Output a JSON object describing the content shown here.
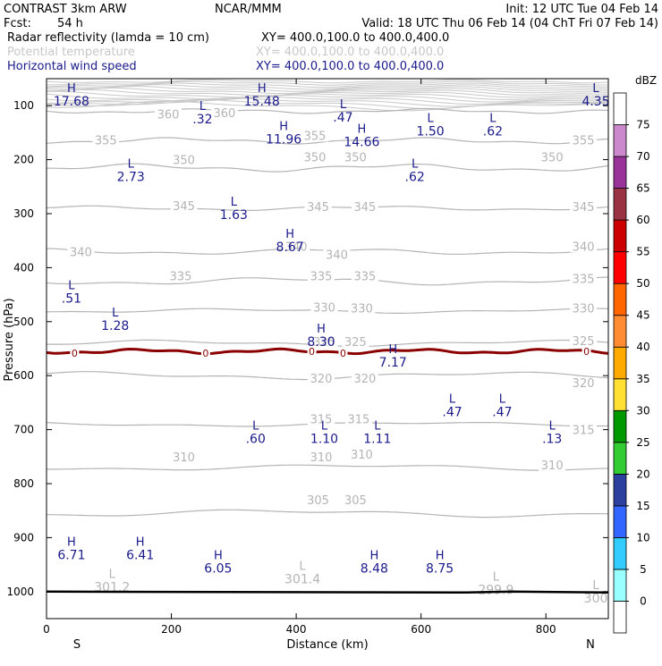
{
  "header": {
    "model": "CONTRAST  3km ARW",
    "org": "NCAR/MMM",
    "init": "Init: 12 UTC Tue 04 Feb 14",
    "fcst_label": "Fcst:",
    "fcst_value": "54 h",
    "valid": "Valid: 18 UTC Thu 06 Feb 14 (04 ChT Fri 07 Feb 14)",
    "fields": [
      {
        "name": "Radar reflectivity (lamda = 10 cm)",
        "xy": "XY= 400.0,100.0 to 400.0,400.0",
        "color": "#000000"
      },
      {
        "name": "Potential temperature",
        "xy": "XY= 400.0,100.0 to 400.0,400.0",
        "color": "#c8c8c8"
      },
      {
        "name": "Horizontal wind speed",
        "xy": "XY= 400.0,100.0 to 400.0,400.0",
        "color": "#1a1a8c"
      }
    ]
  },
  "chart_data": {
    "type": "cross-section contour",
    "xlabel": "Distance (km)",
    "ylabel": "Pressure (hPa)",
    "xlim": [
      0,
      900
    ],
    "ylim": [
      1050,
      50
    ],
    "x_ticks": [
      "0",
      "200",
      "400",
      "600",
      "800"
    ],
    "x_tick_values": [
      0,
      200,
      400,
      600,
      800
    ],
    "y_ticks": [
      "100",
      "200",
      "300",
      "400",
      "500",
      "600",
      "700",
      "800",
      "900",
      "1000"
    ],
    "y_tick_values": [
      100,
      200,
      300,
      400,
      500,
      600,
      700,
      800,
      900,
      1000
    ],
    "start_label": "S",
    "end_label": "N",
    "theta_contours": [
      {
        "value": 360,
        "p": 110
      },
      {
        "value": 355,
        "p": 165
      },
      {
        "value": 350,
        "p": 215
      },
      {
        "value": 345,
        "p": 290
      },
      {
        "value": 340,
        "p": 370
      },
      {
        "value": 335,
        "p": 425
      },
      {
        "value": 330,
        "p": 480
      },
      {
        "value": 325,
        "p": 540
      },
      {
        "value": 320,
        "p": 600
      },
      {
        "value": 315,
        "p": 690
      },
      {
        "value": 310,
        "p": 770
      },
      {
        "value": 305,
        "p": 855
      }
    ],
    "theta_labels": [
      {
        "text": "360",
        "x": 195,
        "p": 120
      },
      {
        "text": "360",
        "x": 285,
        "p": 118
      },
      {
        "text": "355",
        "x": 95,
        "p": 168
      },
      {
        "text": "355",
        "x": 430,
        "p": 160
      },
      {
        "text": "355",
        "x": 860,
        "p": 168
      },
      {
        "text": "350",
        "x": 220,
        "p": 205
      },
      {
        "text": "350",
        "x": 430,
        "p": 200
      },
      {
        "text": "350",
        "x": 495,
        "p": 200
      },
      {
        "text": "350",
        "x": 810,
        "p": 200
      },
      {
        "text": "345",
        "x": 220,
        "p": 290
      },
      {
        "text": "345",
        "x": 435,
        "p": 292
      },
      {
        "text": "345",
        "x": 510,
        "p": 292
      },
      {
        "text": "345",
        "x": 860,
        "p": 292
      },
      {
        "text": "340",
        "x": 55,
        "p": 375
      },
      {
        "text": "340",
        "x": 400,
        "p": 365
      },
      {
        "text": "340",
        "x": 465,
        "p": 380
      },
      {
        "text": "340",
        "x": 860,
        "p": 365
      },
      {
        "text": "335",
        "x": 215,
        "p": 420
      },
      {
        "text": "335",
        "x": 440,
        "p": 420
      },
      {
        "text": "335",
        "x": 510,
        "p": 420
      },
      {
        "text": "335",
        "x": 860,
        "p": 425
      },
      {
        "text": "330",
        "x": 445,
        "p": 478
      },
      {
        "text": "330",
        "x": 505,
        "p": 480
      },
      {
        "text": "330",
        "x": 860,
        "p": 480
      },
      {
        "text": "325",
        "x": 445,
        "p": 542
      },
      {
        "text": "325",
        "x": 495,
        "p": 542
      },
      {
        "text": "325",
        "x": 860,
        "p": 540
      },
      {
        "text": "320",
        "x": 440,
        "p": 610
      },
      {
        "text": "320",
        "x": 510,
        "p": 610
      },
      {
        "text": "320",
        "x": 860,
        "p": 618
      },
      {
        "text": "315",
        "x": 440,
        "p": 685
      },
      {
        "text": "315",
        "x": 500,
        "p": 685
      },
      {
        "text": "315",
        "x": 860,
        "p": 705
      },
      {
        "text": "310",
        "x": 220,
        "p": 755
      },
      {
        "text": "310",
        "x": 440,
        "p": 755
      },
      {
        "text": "310",
        "x": 505,
        "p": 750
      },
      {
        "text": "310",
        "x": 810,
        "p": 770
      },
      {
        "text": "305",
        "x": 435,
        "p": 835
      },
      {
        "text": "305",
        "x": 495,
        "p": 835
      }
    ],
    "freezing_line": {
      "label": "0",
      "p": 555,
      "label_x": [
        45,
        255,
        425,
        475,
        865
      ],
      "color": "#8b0000"
    },
    "wind_extrema": [
      {
        "type": "H",
        "value": "17.68",
        "x": 40,
        "p": 75
      },
      {
        "type": "L",
        "value": ".32",
        "x": 250,
        "p": 108
      },
      {
        "type": "H",
        "value": "15.48",
        "x": 345,
        "p": 75
      },
      {
        "type": "L",
        "value": ".47",
        "x": 475,
        "p": 105
      },
      {
        "type": "L",
        "value": "1.50",
        "x": 615,
        "p": 130
      },
      {
        "type": "L",
        "value": ".62",
        "x": 715,
        "p": 130
      },
      {
        "type": "L",
        "value": "4.35",
        "x": 880,
        "p": 75
      },
      {
        "type": "H",
        "value": "11.96",
        "x": 380,
        "p": 145
      },
      {
        "type": "H",
        "value": "14.66",
        "x": 505,
        "p": 150
      },
      {
        "type": "L",
        "value": "2.73",
        "x": 135,
        "p": 215
      },
      {
        "type": "L",
        "value": ".62",
        "x": 590,
        "p": 215
      },
      {
        "type": "L",
        "value": "1.63",
        "x": 300,
        "p": 285
      },
      {
        "type": "H",
        "value": "8.67",
        "x": 390,
        "p": 345
      },
      {
        "type": "L",
        "value": ".51",
        "x": 40,
        "p": 440
      },
      {
        "type": "L",
        "value": "1.28",
        "x": 110,
        "p": 490
      },
      {
        "type": "H",
        "value": "8.30",
        "x": 440,
        "p": 520
      },
      {
        "type": "H",
        "value": "7.17",
        "x": 555,
        "p": 558
      },
      {
        "type": "L",
        "value": ".47",
        "x": 650,
        "p": 650
      },
      {
        "type": "L",
        "value": ".47",
        "x": 730,
        "p": 650
      },
      {
        "type": "L",
        "value": ".60",
        "x": 335,
        "p": 700
      },
      {
        "type": "L",
        "value": "1.10",
        "x": 445,
        "p": 700
      },
      {
        "type": "L",
        "value": "1.11",
        "x": 530,
        "p": 700
      },
      {
        "type": "L",
        "value": ".13",
        "x": 810,
        "p": 700
      },
      {
        "type": "H",
        "value": "6.71",
        "x": 40,
        "p": 915
      },
      {
        "type": "H",
        "value": "6.41",
        "x": 150,
        "p": 915
      },
      {
        "type": "H",
        "value": "6.05",
        "x": 275,
        "p": 940
      },
      {
        "type": "H",
        "value": "8.48",
        "x": 525,
        "p": 940
      },
      {
        "type": "H",
        "value": "8.75",
        "x": 630,
        "p": 940
      }
    ],
    "theta_extrema": [
      {
        "type": "L",
        "value": "301.2",
        "x": 105,
        "p": 975
      },
      {
        "type": "L",
        "value": "301.4",
        "x": 410,
        "p": 960
      },
      {
        "type": "L",
        "value": "299.9",
        "x": 720,
        "p": 980
      },
      {
        "type": "L",
        "value": "300",
        "x": 880,
        "p": 995
      }
    ],
    "surface_pressure": 1000,
    "colorbar": {
      "unit": "dBZ",
      "levels": [
        "0",
        "5",
        "10",
        "15",
        "20",
        "25",
        "30",
        "35",
        "40",
        "45",
        "50",
        "55",
        "60",
        "65",
        "70",
        "75"
      ],
      "colors": [
        "#ffffff",
        "#99ffff",
        "#33ccff",
        "#3366ff",
        "#2a3f9e",
        "#33cc33",
        "#009900",
        "#ffe033",
        "#ffaa00",
        "#ff8c33",
        "#ff6600",
        "#ff0000",
        "#cc0000",
        "#993344",
        "#993399",
        "#cc88cc",
        "#ffffff"
      ]
    }
  }
}
